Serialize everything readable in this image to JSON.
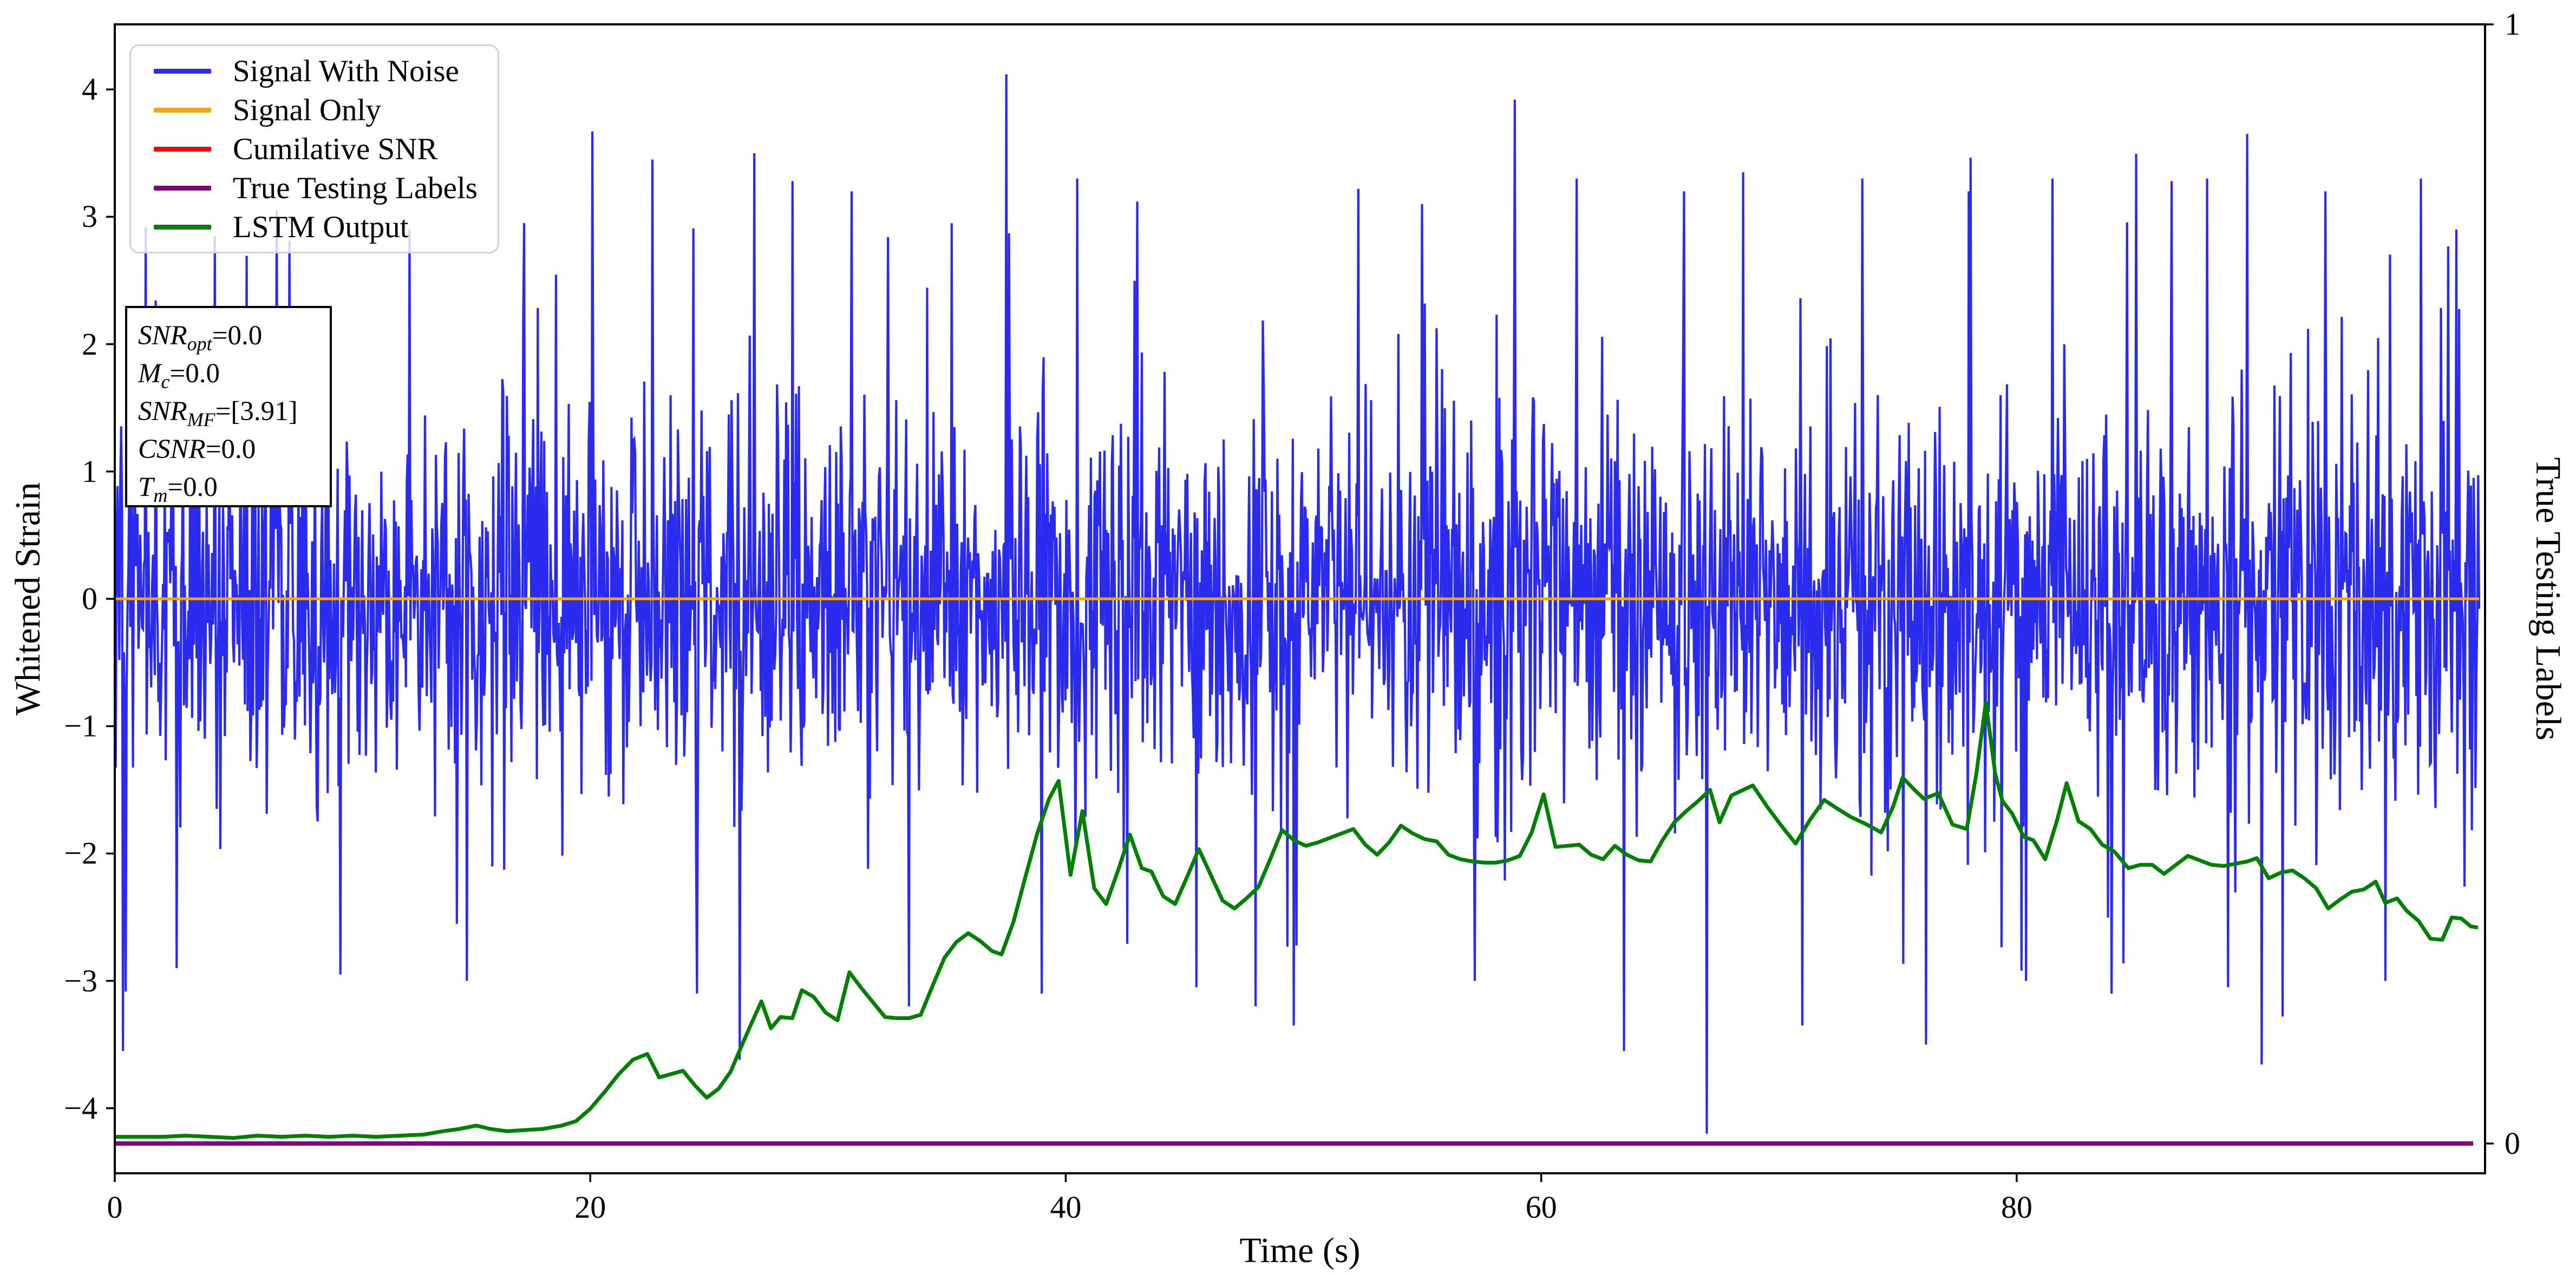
{
  "figure": {
    "background": "#ffffff"
  },
  "chart_data": {
    "type": "line",
    "title": "",
    "xlabel": "Time (s)",
    "ylabel_left": "Whitened Strain",
    "ylabel_right": "True Testing Labels",
    "xlim": [
      0,
      99.7
    ],
    "ylim_left": [
      -4.51,
      4.51
    ],
    "ylim_right": [
      -0.027,
      1.0
    ],
    "grid": false,
    "legend_position": "upper left",
    "xticks": {
      "values": [
        0,
        20,
        40,
        60,
        80
      ],
      "labels": [
        "0",
        "20",
        "40",
        "60",
        "80"
      ]
    },
    "yticks_left": {
      "values": [
        4,
        3,
        2,
        1,
        0,
        -1,
        -2,
        -3,
        -4
      ],
      "labels": [
        "4",
        "3",
        "2",
        "1",
        "0",
        "−1",
        "−2",
        "−3",
        "−4"
      ]
    },
    "yticks_right": {
      "values": [
        1,
        0
      ],
      "labels": [
        "1",
        "0"
      ]
    },
    "series": [
      {
        "name": "Signal With Noise",
        "color": "#2b2bf0",
        "axis": "left",
        "kind": "generated_noise",
        "noise": {
          "seed": 42,
          "n": 2600,
          "t_end": 99.45,
          "sigma_core": 0.72,
          "sigma_tail": 1.35,
          "tail_fraction": 0.1
        },
        "forced_extremes": [
          [
            0.35,
            -3.55
          ],
          [
            1.3,
            2.92
          ],
          [
            2.6,
            -2.9
          ],
          [
            4.2,
            2.85
          ],
          [
            6.8,
            3.05
          ],
          [
            9.5,
            -2.95
          ],
          [
            12.4,
            2.9
          ],
          [
            14.8,
            -3.0
          ],
          [
            17.2,
            2.95
          ],
          [
            20.1,
            3.67
          ],
          [
            22.6,
            3.45
          ],
          [
            24.5,
            -3.1
          ],
          [
            26.3,
            -3.62
          ],
          [
            26.9,
            3.5
          ],
          [
            28.5,
            3.28
          ],
          [
            31.0,
            3.2
          ],
          [
            33.4,
            -3.2
          ],
          [
            35.2,
            2.95
          ],
          [
            37.5,
            4.12
          ],
          [
            39.0,
            -3.1
          ],
          [
            40.5,
            3.3
          ],
          [
            43.0,
            3.12
          ],
          [
            45.5,
            -3.05
          ],
          [
            48.0,
            -3.2
          ],
          [
            49.6,
            -3.35
          ],
          [
            52.3,
            3.22
          ],
          [
            55.0,
            3.1
          ],
          [
            57.2,
            -3.0
          ],
          [
            58.9,
            3.92
          ],
          [
            61.5,
            3.3
          ],
          [
            63.5,
            -3.55
          ],
          [
            66.0,
            3.2
          ],
          [
            68.5,
            3.35
          ],
          [
            71.0,
            -3.35
          ],
          [
            73.5,
            3.3
          ],
          [
            76.2,
            -3.5
          ],
          [
            78.0,
            3.2
          ],
          [
            80.4,
            -3.0
          ],
          [
            81.5,
            3.3
          ],
          [
            84.0,
            -3.1
          ],
          [
            86.5,
            3.28
          ],
          [
            88.0,
            3.3
          ],
          [
            89.7,
            3.65
          ],
          [
            91.2,
            -3.28
          ],
          [
            93.0,
            3.2
          ],
          [
            95.5,
            -3.0
          ],
          [
            97.0,
            3.3
          ],
          [
            98.5,
            2.9
          ]
        ]
      },
      {
        "name": "Signal Only",
        "color": "#ffa500",
        "axis": "left",
        "kind": "constant",
        "value": 0,
        "t_end": 99.45
      },
      {
        "name": "Cumilative SNR",
        "color": "#ff0000",
        "axis": "right",
        "kind": "constant",
        "value": 0,
        "t_end": 99.2,
        "note": "hidden beneath True Testing Labels line"
      },
      {
        "name": "True Testing Labels",
        "color": "#800080",
        "axis": "right",
        "kind": "constant",
        "value": 0,
        "t_end": 99.2
      },
      {
        "name": "LSTM Output",
        "color": "#008000",
        "axis": "right",
        "kind": "points",
        "points": [
          [
            0,
            0.006
          ],
          [
            1,
            0.006
          ],
          [
            2,
            0.006
          ],
          [
            3,
            0.007
          ],
          [
            4,
            0.006
          ],
          [
            5,
            0.005
          ],
          [
            6,
            0.007
          ],
          [
            7,
            0.006
          ],
          [
            8,
            0.007
          ],
          [
            9,
            0.006
          ],
          [
            10,
            0.007
          ],
          [
            11,
            0.006
          ],
          [
            12,
            0.007
          ],
          [
            13,
            0.008
          ],
          [
            13.8,
            0.011
          ],
          [
            14.5,
            0.013
          ],
          [
            15.2,
            0.016
          ],
          [
            15.8,
            0.013
          ],
          [
            16.5,
            0.011
          ],
          [
            17.2,
            0.012
          ],
          [
            18,
            0.013
          ],
          [
            18.8,
            0.016
          ],
          [
            19.4,
            0.02
          ],
          [
            20,
            0.031
          ],
          [
            20.6,
            0.046
          ],
          [
            21.2,
            0.062
          ],
          [
            21.8,
            0.075
          ],
          [
            22.4,
            0.08
          ],
          [
            22.9,
            0.059
          ],
          [
            23.4,
            0.062
          ],
          [
            23.9,
            0.065
          ],
          [
            24.4,
            0.052
          ],
          [
            24.9,
            0.041
          ],
          [
            25.4,
            0.049
          ],
          [
            25.9,
            0.064
          ],
          [
            26.4,
            0.089
          ],
          [
            26.9,
            0.113
          ],
          [
            27.2,
            0.127
          ],
          [
            27.6,
            0.103
          ],
          [
            28,
            0.113
          ],
          [
            28.5,
            0.112
          ],
          [
            28.9,
            0.137
          ],
          [
            29.4,
            0.131
          ],
          [
            29.9,
            0.117
          ],
          [
            30.4,
            0.11
          ],
          [
            30.9,
            0.153
          ],
          [
            31.4,
            0.139
          ],
          [
            31.9,
            0.126
          ],
          [
            32.4,
            0.113
          ],
          [
            32.9,
            0.112
          ],
          [
            33.4,
            0.112
          ],
          [
            33.9,
            0.115
          ],
          [
            34.4,
            0.141
          ],
          [
            34.9,
            0.166
          ],
          [
            35.4,
            0.18
          ],
          [
            35.9,
            0.188
          ],
          [
            36.4,
            0.181
          ],
          [
            36.9,
            0.172
          ],
          [
            37.3,
            0.169
          ],
          [
            37.8,
            0.198
          ],
          [
            38.3,
            0.238
          ],
          [
            38.8,
            0.277
          ],
          [
            39.3,
            0.308
          ],
          [
            39.7,
            0.324
          ],
          [
            40.2,
            0.24
          ],
          [
            40.7,
            0.297
          ],
          [
            41.2,
            0.228
          ],
          [
            41.7,
            0.214
          ],
          [
            42.2,
            0.244
          ],
          [
            42.7,
            0.276
          ],
          [
            43.2,
            0.246
          ],
          [
            43.6,
            0.243
          ],
          [
            44.1,
            0.221
          ],
          [
            44.6,
            0.214
          ],
          [
            45.1,
            0.238
          ],
          [
            45.6,
            0.263
          ],
          [
            46.1,
            0.24
          ],
          [
            46.6,
            0.217
          ],
          [
            47.1,
            0.21
          ],
          [
            47.6,
            0.219
          ],
          [
            48.1,
            0.229
          ],
          [
            48.6,
            0.254
          ],
          [
            49.1,
            0.28
          ],
          [
            49.6,
            0.271
          ],
          [
            50.1,
            0.266
          ],
          [
            50.6,
            0.269
          ],
          [
            51.1,
            0.273
          ],
          [
            51.6,
            0.277
          ],
          [
            52.1,
            0.281
          ],
          [
            52.6,
            0.267
          ],
          [
            53.1,
            0.258
          ],
          [
            53.6,
            0.269
          ],
          [
            54.1,
            0.284
          ],
          [
            54.6,
            0.277
          ],
          [
            55.1,
            0.272
          ],
          [
            55.6,
            0.27
          ],
          [
            56.1,
            0.258
          ],
          [
            56.6,
            0.254
          ],
          [
            57.1,
            0.252
          ],
          [
            57.6,
            0.251
          ],
          [
            58.1,
            0.251
          ],
          [
            58.6,
            0.253
          ],
          [
            59.1,
            0.257
          ],
          [
            59.6,
            0.278
          ],
          [
            60.1,
            0.312
          ],
          [
            60.6,
            0.265
          ],
          [
            61.1,
            0.266
          ],
          [
            61.6,
            0.267
          ],
          [
            62.1,
            0.258
          ],
          [
            62.6,
            0.254
          ],
          [
            63.1,
            0.266
          ],
          [
            63.6,
            0.258
          ],
          [
            64.1,
            0.253
          ],
          [
            64.6,
            0.252
          ],
          [
            65.1,
            0.271
          ],
          [
            65.6,
            0.287
          ],
          [
            66.1,
            0.297
          ],
          [
            66.6,
            0.306
          ],
          [
            67.1,
            0.316
          ],
          [
            67.5,
            0.287
          ],
          [
            68,
            0.311
          ],
          [
            68.5,
            0.316
          ],
          [
            68.9,
            0.32
          ],
          [
            69.5,
            0.301
          ],
          [
            70.1,
            0.284
          ],
          [
            70.7,
            0.268
          ],
          [
            71.3,
            0.289
          ],
          [
            71.9,
            0.307
          ],
          [
            72.4,
            0.3
          ],
          [
            73,
            0.292
          ],
          [
            73.7,
            0.285
          ],
          [
            74.3,
            0.278
          ],
          [
            74.8,
            0.301
          ],
          [
            75.2,
            0.327
          ],
          [
            75.7,
            0.316
          ],
          [
            76.1,
            0.308
          ],
          [
            76.7,
            0.313
          ],
          [
            77.3,
            0.285
          ],
          [
            77.9,
            0.281
          ],
          [
            78.3,
            0.33
          ],
          [
            78.7,
            0.394
          ],
          [
            79.1,
            0.33
          ],
          [
            79.4,
            0.306
          ],
          [
            79.8,
            0.295
          ],
          [
            80.3,
            0.274
          ],
          [
            80.7,
            0.271
          ],
          [
            81.2,
            0.254
          ],
          [
            81.7,
            0.289
          ],
          [
            82.1,
            0.322
          ],
          [
            82.6,
            0.288
          ],
          [
            83.1,
            0.281
          ],
          [
            83.6,
            0.267
          ],
          [
            84.1,
            0.261
          ],
          [
            84.7,
            0.246
          ],
          [
            85.2,
            0.249
          ],
          [
            85.7,
            0.249
          ],
          [
            86.2,
            0.241
          ],
          [
            86.7,
            0.249
          ],
          [
            87.2,
            0.257
          ],
          [
            87.7,
            0.253
          ],
          [
            88.2,
            0.249
          ],
          [
            88.7,
            0.248
          ],
          [
            89.2,
            0.25
          ],
          [
            89.7,
            0.252
          ],
          [
            90.1,
            0.255
          ],
          [
            90.6,
            0.237
          ],
          [
            91.1,
            0.242
          ],
          [
            91.6,
            0.244
          ],
          [
            92.1,
            0.237
          ],
          [
            92.6,
            0.228
          ],
          [
            93.1,
            0.21
          ],
          [
            93.6,
            0.218
          ],
          [
            94.1,
            0.225
          ],
          [
            94.6,
            0.227
          ],
          [
            95.1,
            0.234
          ],
          [
            95.5,
            0.215
          ],
          [
            96,
            0.219
          ],
          [
            96.4,
            0.208
          ],
          [
            96.9,
            0.199
          ],
          [
            97.4,
            0.183
          ],
          [
            97.9,
            0.182
          ],
          [
            98.3,
            0.202
          ],
          [
            98.7,
            0.201
          ],
          [
            99.1,
            0.194
          ],
          [
            99.4,
            0.193
          ]
        ]
      }
    ]
  },
  "legend": {
    "items": [
      {
        "label": "Signal With Noise",
        "color": "#2b2bf0"
      },
      {
        "label": "Signal Only",
        "color": "#ffa500"
      },
      {
        "label": "Cumilative SNR",
        "color": "#ff0000"
      },
      {
        "label": "True Testing Labels",
        "color": "#800080"
      },
      {
        "label": "LSTM Output",
        "color": "#008000"
      }
    ]
  },
  "annotation_box": {
    "lines": [
      {
        "variable": "SNR",
        "subscript": "opt",
        "rest": "=0.0"
      },
      {
        "variable": "M",
        "subscript": "c",
        "rest": "=0.0"
      },
      {
        "variable": "SNR",
        "subscript": "MF",
        "rest": "=[3.91]"
      },
      {
        "variable": "CSNR",
        "subscript": "",
        "rest": "=0.0"
      },
      {
        "variable": "T",
        "subscript": "m",
        "rest": "=0.0"
      }
    ]
  }
}
